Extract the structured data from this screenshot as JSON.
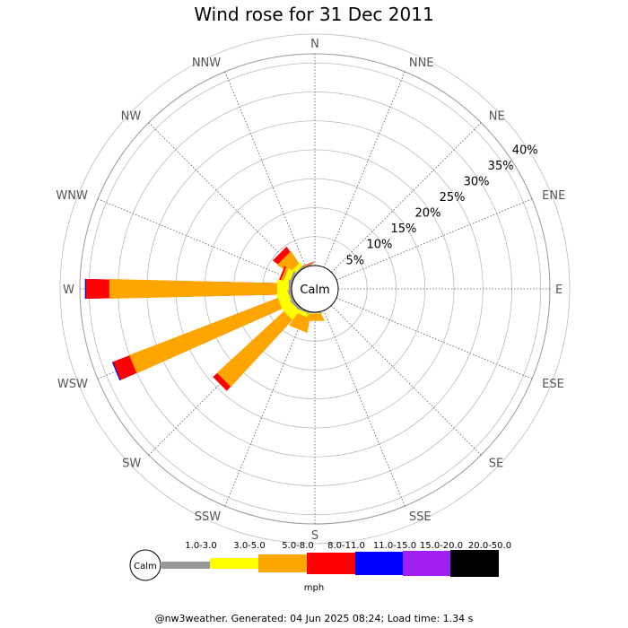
{
  "title": "Wind rose for 31 Dec 2011",
  "calm_label": "Calm",
  "footer": "@nw3weather. Generated: 04 Jun 2025 08:24; Load time: 1.34 s",
  "chart_data": {
    "type": "polar-bar",
    "title": "Wind rose for 31 Dec 2011",
    "directions": [
      "N",
      "NNE",
      "NE",
      "ENE",
      "E",
      "ESE",
      "SE",
      "SSE",
      "S",
      "SSW",
      "SW",
      "WSW",
      "W",
      "WNW",
      "NW",
      "NNW"
    ],
    "ring_labels": [
      "5%",
      "10%",
      "15%",
      "20%",
      "25%",
      "30%",
      "35%",
      "40%"
    ],
    "ring_values": [
      5,
      10,
      15,
      20,
      25,
      30,
      35,
      40
    ],
    "rmax": 40,
    "unit": "mph",
    "speed_bins": [
      {
        "label": "1.0-3.0",
        "color": "#999999"
      },
      {
        "label": "3.0-5.0",
        "color": "#ffff00"
      },
      {
        "label": "5.0-8.0",
        "color": "#ffa500"
      },
      {
        "label": "8.0-11.0",
        "color": "#ff0000"
      },
      {
        "label": "11.0-15.0",
        "color": "#0000ff"
      },
      {
        "label": "15.0-20.0",
        "color": "#a020f0"
      },
      {
        "label": "20.0-50.0",
        "color": "#000000"
      }
    ],
    "series": [
      {
        "direction": "NNW",
        "cumulative": [
          0.2,
          0.2,
          0.3,
          0.4,
          0.4,
          0.4,
          0.4
        ]
      },
      {
        "direction": "NW",
        "cumulative": [
          0.3,
          1.0,
          3.5,
          4.6,
          4.6,
          4.6,
          4.6
        ]
      },
      {
        "direction": "WNW",
        "cumulative": [
          0.5,
          1.5,
          2.0,
          2.3,
          2.3,
          2.3,
          2.3
        ]
      },
      {
        "direction": "W",
        "cumulative": [
          0.5,
          2.5,
          31.5,
          35.5,
          35.7,
          35.7,
          35.7
        ]
      },
      {
        "direction": "WSW",
        "cumulative": [
          0.5,
          2.5,
          30.0,
          33.0,
          33.2,
          33.2,
          33.2
        ]
      },
      {
        "direction": "SW",
        "cumulative": [
          0.5,
          2.5,
          18.2,
          19.2,
          19.2,
          19.2,
          19.2
        ]
      },
      {
        "direction": "SSW",
        "cumulative": [
          0.3,
          1.0,
          3.5,
          3.5,
          3.5,
          3.5,
          3.5
        ]
      },
      {
        "direction": "S",
        "cumulative": [
          0.2,
          0.3,
          1.5,
          1.5,
          1.5,
          1.5,
          1.5
        ]
      }
    ]
  }
}
